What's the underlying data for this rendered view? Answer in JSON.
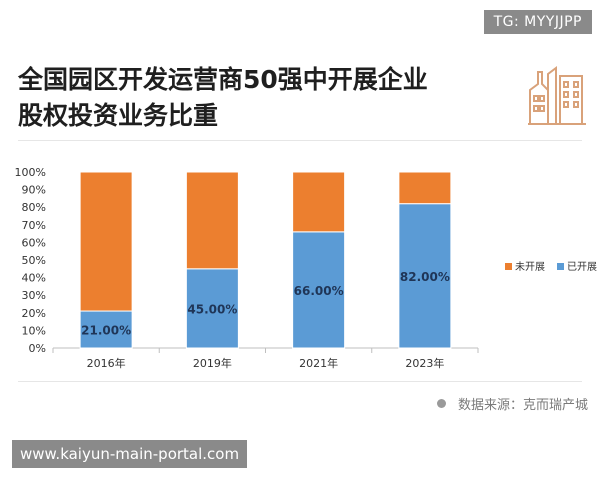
{
  "tag": "TG: MYYJJPP",
  "title_line1": "全国园区开发运营商50强中开展企业",
  "title_line2": "股权投资业务比重",
  "source_text": "数据来源：克而瑞产城",
  "watermark": "www.kaiyun-main-portal.com",
  "colors": {
    "orange": "#ec7f2f",
    "blue": "#5b9bd5",
    "icon": "#d9a27a"
  },
  "chart_data": {
    "type": "bar",
    "stacked": true,
    "categories": [
      "2016年",
      "2019年",
      "2021年",
      "2023年"
    ],
    "series": [
      {
        "name": "已开展",
        "values": [
          21,
          45,
          66,
          82
        ],
        "color": "#5b9bd5",
        "labels": [
          "21.00%",
          "45.00%",
          "66.00%",
          "82.00%"
        ]
      },
      {
        "name": "未开展",
        "values": [
          79,
          55,
          34,
          18
        ],
        "color": "#ec7f2f"
      }
    ],
    "ylim": [
      0,
      100
    ],
    "yticks": [
      "0%",
      "10%",
      "20%",
      "30%",
      "40%",
      "50%",
      "60%",
      "70%",
      "80%",
      "90%",
      "100%"
    ],
    "legend": "right",
    "grid": false
  }
}
